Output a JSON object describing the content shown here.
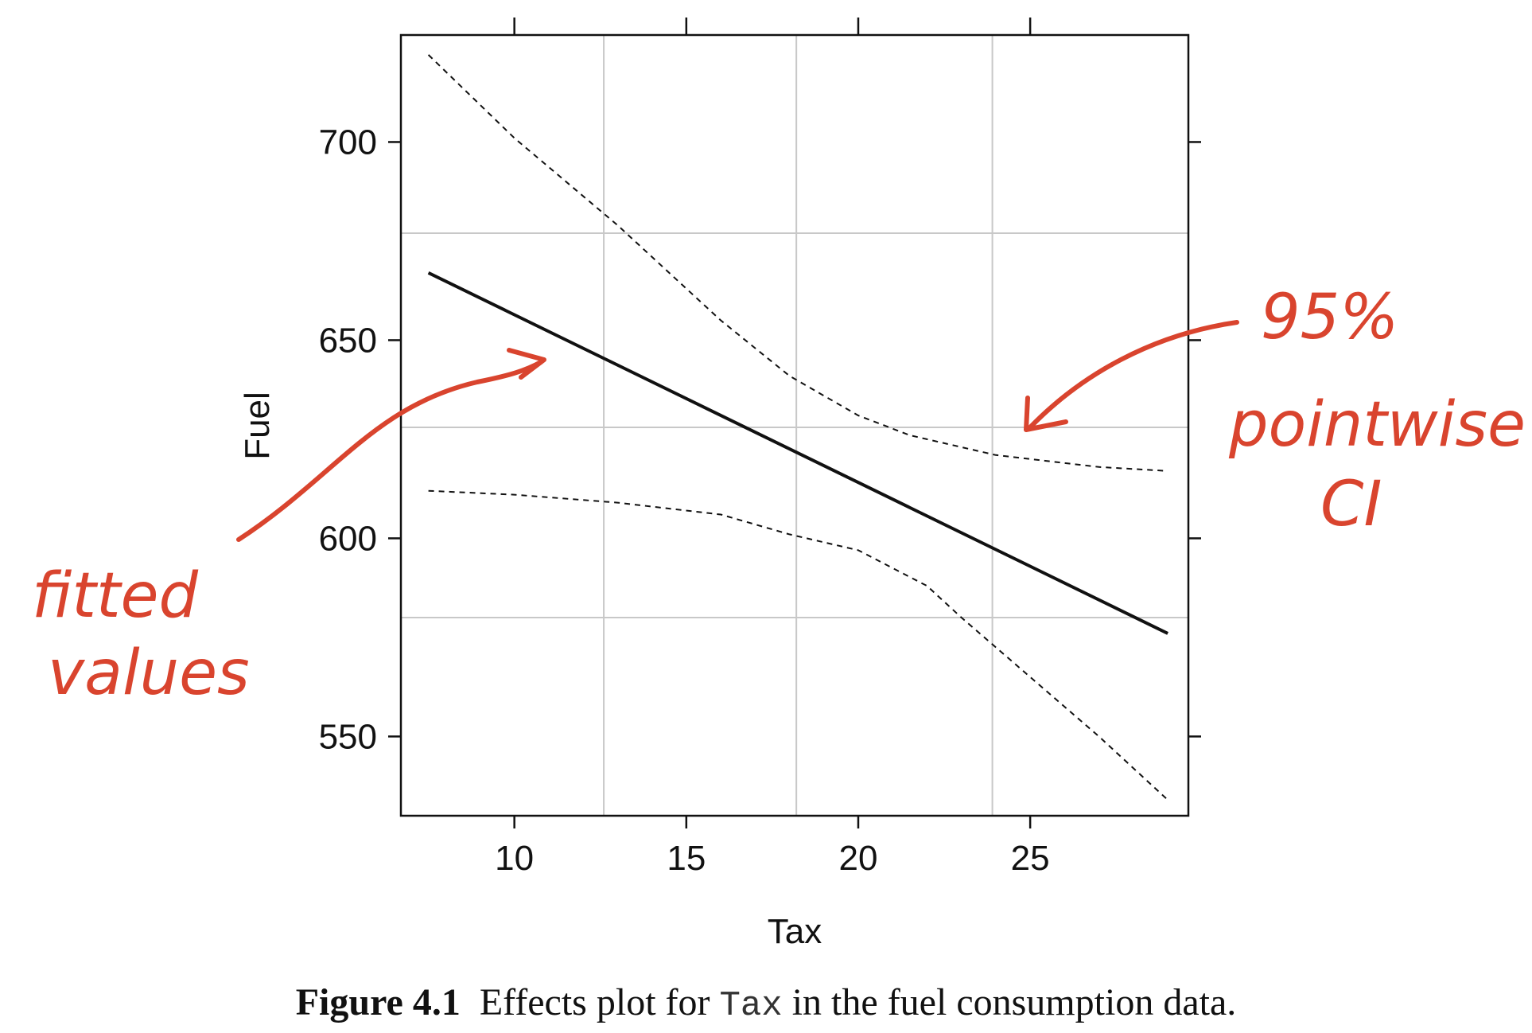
{
  "chart_data": {
    "type": "line",
    "xlabel": "Tax",
    "ylabel": "Fuel",
    "xlim": [
      6.7,
      29.6
    ],
    "ylim": [
      530,
      727
    ],
    "x_ticks": [
      10,
      15,
      20,
      25
    ],
    "y_ticks": [
      550,
      600,
      650,
      700
    ],
    "grid": true,
    "series": [
      {
        "name": "fitted values",
        "style": "solid",
        "x": [
          7.5,
          29.0
        ],
        "y": [
          667,
          576
        ]
      },
      {
        "name": "upper 95% pointwise CI",
        "style": "dashed",
        "x": [
          7.5,
          10,
          13,
          16,
          18,
          20,
          21.5,
          23,
          24,
          25,
          27,
          29
        ],
        "y": [
          722,
          701,
          679,
          655,
          641,
          631,
          626,
          623,
          621,
          620,
          618,
          617
        ]
      },
      {
        "name": "lower 95% pointwise CI",
        "style": "dashed",
        "x": [
          7.5,
          10,
          13,
          16,
          18,
          20,
          22,
          23,
          25,
          27,
          29
        ],
        "y": [
          612,
          611,
          609,
          606,
          601,
          597,
          588,
          580,
          565,
          550,
          534
        ]
      }
    ],
    "annotations": [
      {
        "text": [
          "fitted",
          "values"
        ]
      },
      {
        "text": [
          "95%",
          "pointwise",
          "CI"
        ]
      }
    ]
  },
  "colors": {
    "axis": "#111111",
    "grid": "#c8c8c8",
    "line": "#111111",
    "annotation": "#d9442e"
  },
  "caption": {
    "label": "Figure 4.1",
    "text_before": "Effects plot for",
    "code": "Tax",
    "text_after": "in the fuel consumption data."
  }
}
